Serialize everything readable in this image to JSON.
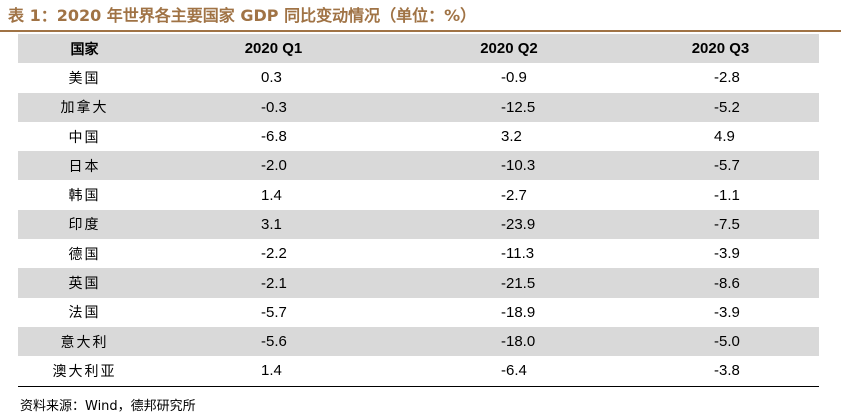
{
  "title": "表 1：2020 年世界各主要国家 GDP 同比变动情况（单位：%）",
  "headers": [
    "国家",
    "2020 Q1",
    "2020 Q2",
    "2020 Q3"
  ],
  "rows": [
    [
      "美国",
      "0.3",
      "-0.9",
      "-2.8"
    ],
    [
      "加拿大",
      "-0.3",
      "-12.5",
      "-5.2"
    ],
    [
      "中国",
      "-6.8",
      "3.2",
      "4.9"
    ],
    [
      "日本",
      "-2.0",
      "-10.3",
      "-5.7"
    ],
    [
      "韩国",
      "1.4",
      "-2.7",
      "-1.1"
    ],
    [
      "印度",
      "3.1",
      "-23.9",
      "-7.5"
    ],
    [
      "德国",
      "-2.2",
      "-11.3",
      "-3.9"
    ],
    [
      "英国",
      "-2.1",
      "-21.5",
      "-8.6"
    ],
    [
      "法国",
      "-5.7",
      "-18.9",
      "-3.9"
    ],
    [
      "意大利",
      "-5.6",
      "-18.0",
      "-5.0"
    ],
    [
      "澳大利亚",
      "1.4",
      "-6.4",
      "-3.8"
    ]
  ],
  "source": "资料来源：Wind，德邦研究所",
  "colors": {
    "title": "#a07345",
    "stripe": "#d9d9d9"
  }
}
